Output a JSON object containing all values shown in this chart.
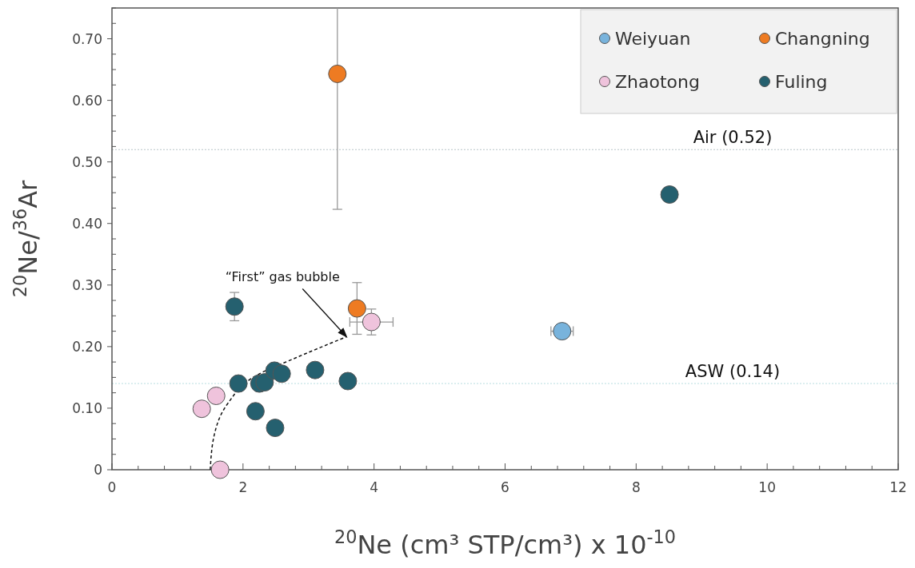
{
  "chart_data": {
    "type": "scatter",
    "xlabel": "$^{20}$Ne (cm³ STP/cm³) x 10$^{-10}$",
    "ylabel": "$^{20}$Ne/$^{36}$Ar",
    "xlim": [
      0,
      12
    ],
    "ylim": [
      0,
      0.75
    ],
    "xticks": [
      0,
      {
        "value": 0.4,
        "label": null
      },
      {
        "value": 0.8,
        "label": null
      },
      {
        "value": 1.2,
        "label": null
      },
      {
        "value": 1.6,
        "label": null
      },
      2,
      {
        "value": 2.4,
        "label": null
      },
      {
        "value": 2.8,
        "label": null
      },
      {
        "value": 3.2,
        "label": null
      },
      {
        "value": 3.6,
        "label": null
      },
      4,
      {
        "value": 4.4,
        "label": null
      },
      {
        "value": 4.8,
        "label": null
      },
      {
        "value": 5.2,
        "label": null
      },
      {
        "value": 5.6,
        "label": null
      },
      6,
      {
        "value": 6.4,
        "label": null
      },
      {
        "value": 6.8,
        "label": null
      },
      {
        "value": 7.2,
        "label": null
      },
      {
        "value": 7.6,
        "label": null
      },
      8,
      {
        "value": 8.4,
        "label": null
      },
      {
        "value": 8.8,
        "label": null
      },
      {
        "value": 9.2,
        "label": null
      },
      {
        "value": 9.6,
        "label": null
      },
      10,
      {
        "value": 10.4,
        "label": null
      },
      {
        "value": 10.8,
        "label": null
      },
      {
        "value": 11.2,
        "label": null
      },
      {
        "value": 11.6,
        "label": null
      },
      12
    ],
    "yticks": [
      0,
      {
        "value": 0.025,
        "label": null
      },
      {
        "value": 0.05,
        "label": null
      },
      {
        "value": 0.075,
        "label": null
      },
      {
        "value": 0.1,
        "label": "0.10"
      },
      {
        "value": 0.125,
        "label": null
      },
      {
        "value": 0.15,
        "label": null
      },
      {
        "value": 0.175,
        "label": null
      },
      {
        "value": 0.2,
        "label": "0.20"
      },
      {
        "value": 0.225,
        "label": null
      },
      {
        "value": 0.25,
        "label": null
      },
      {
        "value": 0.275,
        "label": null
      },
      {
        "value": 0.3,
        "label": "0.30"
      },
      {
        "value": 0.325,
        "label": null
      },
      {
        "value": 0.35,
        "label": null
      },
      {
        "value": 0.375,
        "label": null
      },
      {
        "value": 0.4,
        "label": "0.40"
      },
      {
        "value": 0.425,
        "label": null
      },
      {
        "value": 0.45,
        "label": null
      },
      {
        "value": 0.475,
        "label": null
      },
      {
        "value": 0.5,
        "label": "0.50"
      },
      {
        "value": 0.525,
        "label": null
      },
      {
        "value": 0.55,
        "label": null
      },
      {
        "value": 0.575,
        "label": null
      },
      {
        "value": 0.6,
        "label": "0.60"
      },
      {
        "value": 0.625,
        "label": null
      },
      {
        "value": 0.65,
        "label": null
      },
      {
        "value": 0.675,
        "label": null
      },
      {
        "value": 0.7,
        "label": "0.70"
      },
      {
        "value": 0.725,
        "label": null
      },
      {
        "value": 0.75,
        "label": null
      }
    ],
    "grid": false,
    "legend": "top right",
    "marker": "circle",
    "ref_lines": [
      {
        "axis": "y",
        "value": 0.52,
        "label": "Air (0.52)",
        "color": "#b8c4c8",
        "line_style": "dotted"
      },
      {
        "axis": "y",
        "value": 0.14,
        "label": "ASW (0.14)",
        "color": "#b8dde0",
        "line_style": "dotted"
      }
    ],
    "annotations": [
      {
        "text": "“First” gas bubble",
        "x": 3.58,
        "y": 0.216
      }
    ],
    "series": [
      {
        "type": "line",
        "color": "#111111",
        "line_style": "dashed",
        "marker": "none",
        "x": [
          1.5,
          1.56,
          1.77,
          2.2,
          2.81,
          3.58
        ],
        "values": [
          0,
          0.056,
          0.108,
          0.153,
          0.182,
          0.216
        ]
      },
      {
        "name": "Weiyuan",
        "color": "#78b3dc",
        "x": [
          6.87
        ],
        "values": [
          0.225
        ],
        "xerrors": [
          0.17
        ]
      },
      {
        "name": "Changning",
        "color": "#ee7b22",
        "x": [
          3.44,
          3.74
        ],
        "values": [
          0.643,
          0.262
        ],
        "errors": [
          0.22,
          0.042
        ]
      },
      {
        "name": "Zhaotong",
        "color": "#efc3dc",
        "x": [
          3.96,
          1.37,
          1.59,
          1.65
        ],
        "values": [
          0.24,
          0.099,
          0.12,
          0
        ],
        "errors": [
          0.021,
          null,
          null,
          null
        ],
        "xerrors": [
          0.33,
          null,
          null,
          null
        ]
      },
      {
        "name": "Fuling",
        "color": "#25606f",
        "x": [
          1.87,
          1.93,
          2.25,
          2.33,
          2.48,
          2.59,
          2.19,
          2.49,
          3.1,
          3.6,
          8.51
        ],
        "values": [
          0.265,
          0.14,
          0.14,
          0.142,
          0.161,
          0.156,
          0.095,
          0.068,
          0.162,
          0.144,
          0.447
        ],
        "errors": [
          0.023,
          null,
          null,
          null,
          null,
          null,
          null,
          null,
          null,
          null,
          null
        ]
      }
    ]
  }
}
